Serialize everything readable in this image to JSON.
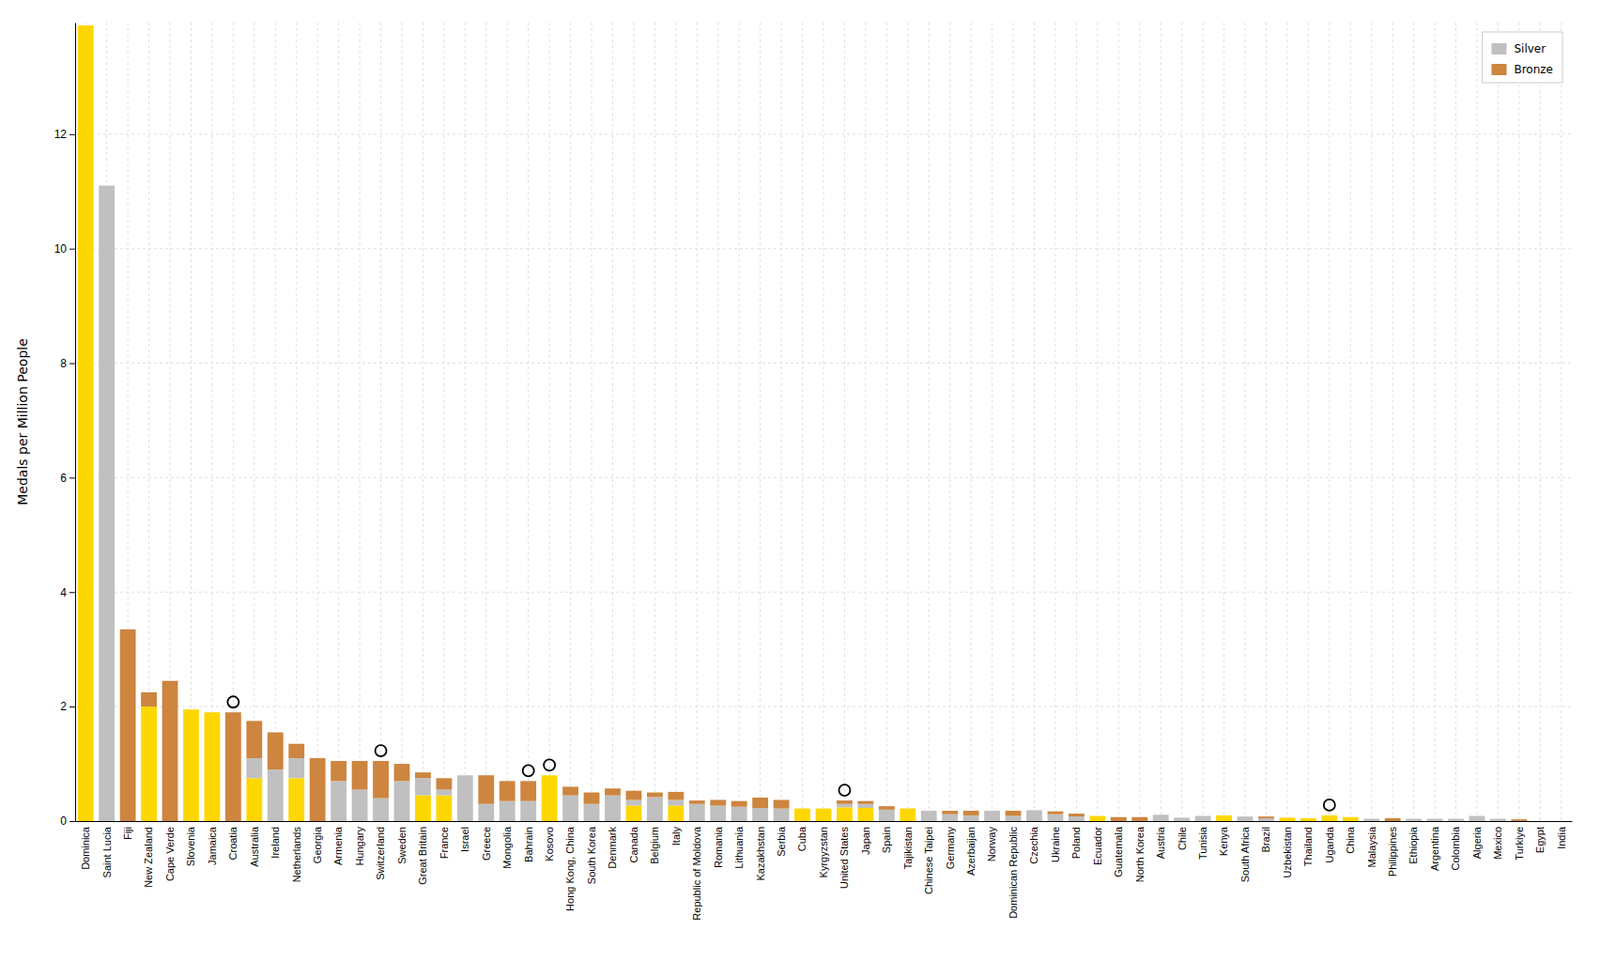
{
  "chart_data": {
    "type": "bar",
    "ylabel": "Medals per Million People",
    "categories": [
      "Dominica",
      "Saint Lucia",
      "Fiji",
      "New Zealand",
      "Cape Verde",
      "Slovenia",
      "Jamaica",
      "Croatia",
      "Australia",
      "Ireland",
      "Netherlands",
      "Georgia",
      "Armenia",
      "Hungary",
      "Switzerland",
      "Sweden",
      "Great Britain",
      "France",
      "Israel",
      "Greece",
      "Mongolia",
      "Bahrain",
      "Kosovo",
      "Hong Kong, China",
      "South Korea",
      "Denmark",
      "Canada",
      "Belgium",
      "Italy",
      "Republic of Moldova",
      "Romania",
      "Lithuania",
      "Kazakhstan",
      "Serbia",
      "Cuba",
      "Kyrgyzstan",
      "United States",
      "Japan",
      "Spain",
      "Tajikistan",
      "Chinese Taipei",
      "Germany",
      "Azerbaijan",
      "Norway",
      "Dominican Republic",
      "Czechia",
      "Ukraine",
      "Poland",
      "Ecuador",
      "Guatemala",
      "North Korea",
      "Austria",
      "Chile",
      "Tunisia",
      "Kenya",
      "South Africa",
      "Brazil",
      "Uzbekistan",
      "Thailand",
      "Uganda",
      "China",
      "Malaysia",
      "Philippines",
      "Ethiopia",
      "Argentina",
      "Colombia",
      "Algeria",
      "Mexico",
      "Turkiye",
      "Egypt",
      "India"
    ],
    "series": [
      {
        "color": "#FFD700",
        "values": [
          13.9,
          0.0,
          0.0,
          2.0,
          0.0,
          1.95,
          1.9,
          0.0,
          0.75,
          0.0,
          0.75,
          0.0,
          0.0,
          0.0,
          0.0,
          0.0,
          0.45,
          0.45,
          0.0,
          0.0,
          0.0,
          0.0,
          0.8,
          0.0,
          0.0,
          0.0,
          0.27,
          0.0,
          0.27,
          0.0,
          0.0,
          0.0,
          0.0,
          0.0,
          0.22,
          0.22,
          0.24,
          0.23,
          0.0,
          0.22,
          0.0,
          0.0,
          0.0,
          0.0,
          0.0,
          0.0,
          0.0,
          0.0,
          0.09,
          0.0,
          0.0,
          0.0,
          0.0,
          0.0,
          0.1,
          0.0,
          0.0,
          0.06,
          0.05,
          0.1,
          0.07,
          0.0,
          0.0,
          0.0,
          0.0,
          0.0,
          0.0,
          0.0,
          0.0,
          0.0,
          0.0
        ]
      },
      {
        "name": "Silver",
        "color": "#C0C0C0",
        "values": [
          0.0,
          11.1,
          0.0,
          0.0,
          0.0,
          0.0,
          0.0,
          0.0,
          0.35,
          0.9,
          0.35,
          0.0,
          0.7,
          0.55,
          0.4,
          0.7,
          0.3,
          0.1,
          0.8,
          0.3,
          0.35,
          0.35,
          0.0,
          0.45,
          0.3,
          0.45,
          0.1,
          0.42,
          0.1,
          0.3,
          0.27,
          0.25,
          0.23,
          0.22,
          0.0,
          0.0,
          0.06,
          0.07,
          0.2,
          0.0,
          0.18,
          0.12,
          0.1,
          0.18,
          0.09,
          0.19,
          0.12,
          0.08,
          0.0,
          0.0,
          0.0,
          0.11,
          0.06,
          0.09,
          0.0,
          0.08,
          0.05,
          0.0,
          0.0,
          0.0,
          0.0,
          0.04,
          0.0,
          0.04,
          0.04,
          0.04,
          0.09,
          0.04,
          0.0,
          0.0,
          0.0
        ]
      },
      {
        "name": "Bronze",
        "color": "#CD853F",
        "values": [
          0.0,
          0.0,
          3.35,
          0.25,
          2.45,
          0.0,
          0.0,
          1.9,
          0.65,
          0.65,
          0.25,
          1.1,
          0.35,
          0.5,
          0.65,
          0.3,
          0.1,
          0.2,
          0.0,
          0.5,
          0.35,
          0.35,
          0.0,
          0.15,
          0.2,
          0.12,
          0.16,
          0.08,
          0.14,
          0.06,
          0.1,
          0.1,
          0.18,
          0.15,
          0.0,
          0.0,
          0.06,
          0.05,
          0.06,
          0.0,
          0.0,
          0.06,
          0.08,
          0.0,
          0.09,
          0.0,
          0.05,
          0.05,
          0.0,
          0.07,
          0.07,
          0.0,
          0.0,
          0.0,
          0.0,
          0.0,
          0.03,
          0.0,
          0.0,
          0.0,
          0.0,
          0.0,
          0.05,
          0.0,
          0.0,
          0.0,
          0.0,
          0.0,
          0.03,
          0.0,
          0.0
        ]
      },
      {
        "type": "scatter",
        "marker": "circle",
        "color": "#000000",
        "values": [
          null,
          null,
          null,
          null,
          null,
          null,
          null,
          2.08,
          null,
          null,
          null,
          null,
          null,
          null,
          1.23,
          null,
          null,
          null,
          null,
          null,
          null,
          0.88,
          0.98,
          null,
          null,
          null,
          null,
          null,
          null,
          null,
          null,
          null,
          null,
          null,
          null,
          null,
          0.54,
          null,
          null,
          null,
          null,
          null,
          null,
          null,
          null,
          null,
          null,
          null,
          null,
          null,
          null,
          null,
          null,
          null,
          null,
          null,
          null,
          null,
          null,
          0.28,
          null,
          null,
          null,
          null,
          null,
          null,
          null,
          null,
          null,
          null,
          null
        ]
      }
    ],
    "stacked": true,
    "ylim": [
      0,
      13.95
    ],
    "yticks": [
      0,
      2,
      4,
      6,
      8,
      10,
      12
    ],
    "grid": true,
    "legend": "upper-right"
  }
}
